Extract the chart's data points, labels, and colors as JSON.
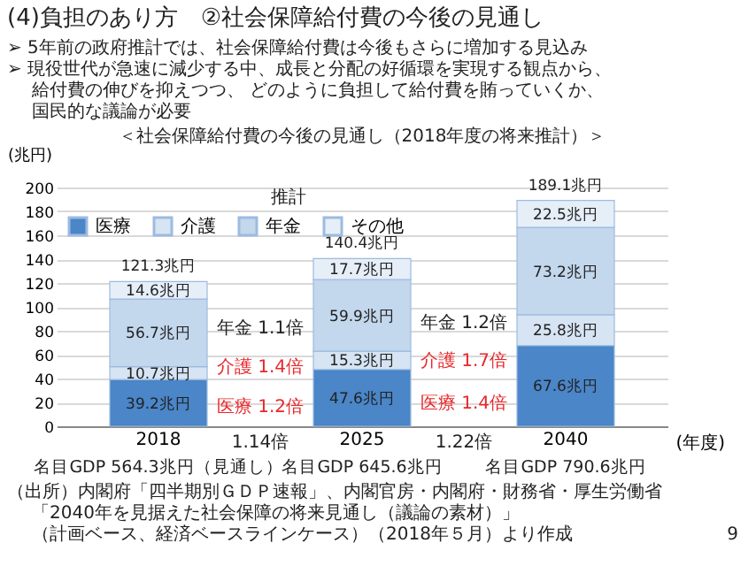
{
  "chart_data": {
    "type": "bar",
    "title": "(4)負担のあり方　②社会保障給付費の今後の見通し",
    "subtitle": "＜社会保障給付費の今後の見通し（2018年度の将来推計）＞",
    "xlabel": "(年度)",
    "ylabel": "(兆円)",
    "categories": [
      "2018",
      "2025",
      "2040"
    ],
    "stacked": true,
    "series": [
      {
        "name": "医療",
        "color": "#4a86c8",
        "values": [
          39.2,
          47.6,
          67.6
        ],
        "value_labels": [
          "39.2兆円",
          "47.6兆円",
          "67.6兆円"
        ]
      },
      {
        "name": "介護",
        "color": "#d6e4f3",
        "values": [
          10.7,
          15.3,
          25.8
        ],
        "value_labels": [
          "10.7兆円",
          "15.3兆円",
          "25.8兆円"
        ]
      },
      {
        "name": "年金",
        "color": "#c3d7ed",
        "values": [
          56.7,
          59.9,
          73.2
        ],
        "value_labels": [
          "56.7兆円",
          "59.9兆円",
          "73.2兆円"
        ]
      },
      {
        "name": "その他",
        "color": "#e6eef8",
        "values": [
          14.6,
          17.7,
          22.5
        ],
        "value_labels": [
          "14.6兆円",
          "17.7兆円",
          "22.5兆円"
        ]
      }
    ],
    "totals": [
      "121.3兆円",
      "140.4兆円",
      "189.1兆円"
    ],
    "ylim": [
      0,
      200
    ],
    "yticks": [
      0,
      20,
      40,
      60,
      80,
      100,
      120,
      140,
      160,
      180,
      200
    ],
    "grid": "y",
    "legend": "top left",
    "annotations": [
      "➢ 5年前の政府推計では、社会保障給付費は今後もさらに増加する見込み",
      "➢ 現役世代が急速に減少する中、成長と分配の好循環を実現する観点から、",
      "給付費の伸びを抑えつつ、 どのように負担して給付費を賄っていくか、",
      "国民的な議論が必要",
      "推計",
      "年金 1.1倍",
      "介護 1.4倍",
      "医療 1.2倍",
      "年金 1.2倍",
      "介護 1.7倍",
      "医療 1.4倍",
      "名目GDP 564.3兆円（見通し）",
      "1.14倍",
      "名目GDP 645.6兆円",
      "1.22倍",
      "名目GDP 790.6兆円",
      "（出所）内閣府「四半期別ＧＤＰ速報」、内閣官房・内閣府・財務省・厚生労働省",
      "「2040年を見据えた社会保障の将来見通し（議論の素材）」",
      "（計画ベース、経済ベースラインケース）（2018年５月）より作成",
      "9"
    ]
  }
}
